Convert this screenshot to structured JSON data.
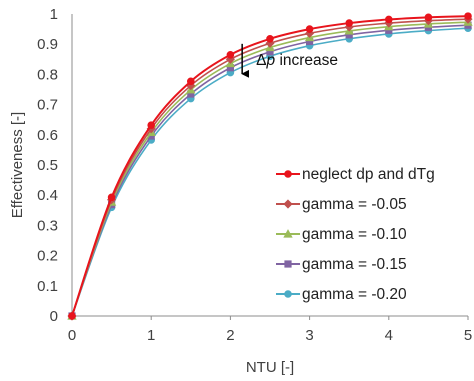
{
  "chart_data": {
    "type": "line",
    "xlabel": "NTU [-]",
    "ylabel": "Effectiveness [-]",
    "xlim": [
      0,
      5
    ],
    "ylim": [
      0,
      1
    ],
    "x_ticks": [
      0,
      1,
      2,
      3,
      4,
      5
    ],
    "y_ticks": [
      0,
      0.1,
      0.2,
      0.3,
      0.4,
      0.5,
      0.6,
      0.7,
      0.8,
      0.9,
      1
    ],
    "x_tick_labels": [
      "0",
      "1",
      "2",
      "3",
      "4",
      "5"
    ],
    "y_tick_labels": [
      "0",
      "0.1",
      "0.2",
      "0.3",
      "0.4",
      "0.5",
      "0.6",
      "0.7",
      "0.8",
      "0.9",
      "1"
    ],
    "grid": "none",
    "legend_position": "bottom-right",
    "x": [
      0,
      0.5,
      1,
      1.5,
      2,
      2.5,
      3,
      3.5,
      4,
      4.5,
      5
    ],
    "series": [
      {
        "name": "neglect dp and dTg",
        "color": "#e8141c",
        "marker": "circle",
        "values": [
          0,
          0.393,
          0.632,
          0.777,
          0.865,
          0.918,
          0.95,
          0.97,
          0.982,
          0.989,
          0.993
        ]
      },
      {
        "name": "gamma = -0.05",
        "color": "#c0504d",
        "marker": "diamond",
        "values": [
          0,
          0.385,
          0.62,
          0.763,
          0.85,
          0.903,
          0.936,
          0.957,
          0.97,
          0.978,
          0.983
        ]
      },
      {
        "name": "gamma = -0.10",
        "color": "#9bbb59",
        "marker": "triangle",
        "values": [
          0,
          0.377,
          0.608,
          0.749,
          0.836,
          0.889,
          0.922,
          0.944,
          0.958,
          0.967,
          0.973
        ]
      },
      {
        "name": "gamma = -0.15",
        "color": "#8064a2",
        "marker": "square",
        "values": [
          0,
          0.369,
          0.596,
          0.735,
          0.822,
          0.875,
          0.909,
          0.931,
          0.946,
          0.956,
          0.963
        ]
      },
      {
        "name": "gamma = -0.20",
        "color": "#4bacc6",
        "marker": "circle",
        "values": [
          0,
          0.36,
          0.583,
          0.72,
          0.806,
          0.86,
          0.895,
          0.918,
          0.934,
          0.945,
          0.953
        ]
      }
    ],
    "annotation": {
      "prefix": "Δ",
      "italic": "p",
      "suffix": " increase",
      "x": 2.3,
      "y": 0.835
    }
  }
}
